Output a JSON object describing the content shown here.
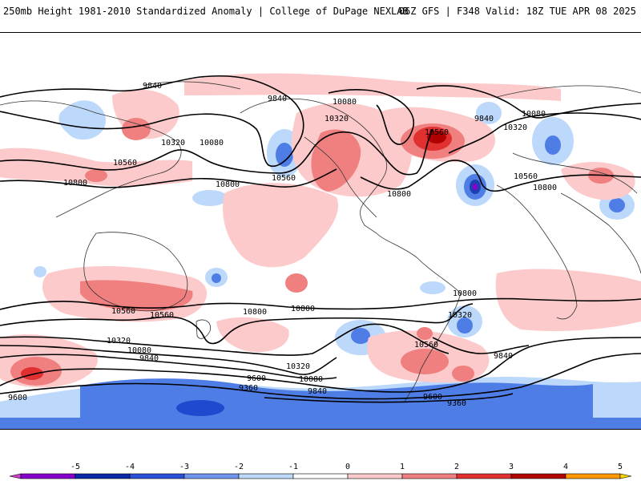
{
  "header": {
    "title_left": "250mb Height 1981-2010 Standardized Anomaly | College of DuPage NEXLAB",
    "title_right": "06Z GFS | F348 Valid: 18Z TUE APR 08 2025"
  },
  "map": {
    "region": "global",
    "contour_labels": [
      {
        "text": "9840"
      },
      {
        "text": "9840"
      },
      {
        "text": "10080"
      },
      {
        "text": "9840"
      },
      {
        "text": "10080"
      },
      {
        "text": "10320"
      },
      {
        "text": "10560"
      },
      {
        "text": "10320"
      },
      {
        "text": "10320"
      },
      {
        "text": "10080"
      },
      {
        "text": "10560"
      },
      {
        "text": "10800"
      },
      {
        "text": "10560"
      },
      {
        "text": "10800"
      },
      {
        "text": "10800"
      },
      {
        "text": "10560"
      },
      {
        "text": "10800"
      },
      {
        "text": "10800"
      },
      {
        "text": "10800"
      },
      {
        "text": "10560"
      },
      {
        "text": "10560"
      },
      {
        "text": "10800"
      },
      {
        "text": "10320"
      },
      {
        "text": "10320"
      },
      {
        "text": "10560"
      },
      {
        "text": "10320"
      },
      {
        "text": "10080"
      },
      {
        "text": "10080"
      },
      {
        "text": "9840"
      },
      {
        "text": "9840"
      },
      {
        "text": "9600"
      },
      {
        "text": "9360"
      },
      {
        "text": "9840"
      },
      {
        "text": "9600"
      },
      {
        "text": "9360"
      },
      {
        "text": "9600"
      }
    ]
  },
  "colorbar": {
    "ticks": [
      "-5",
      "-4",
      "-3",
      "-2",
      "-1",
      "0",
      "1",
      "2",
      "3",
      "4",
      "5"
    ],
    "colors": [
      "#cc40cc",
      "#8800cc",
      "#0c2aa8",
      "#2a50d8",
      "#6f95ee",
      "#bcd8fa",
      "#ffffff",
      "#fccaca",
      "#f08080",
      "#e03030",
      "#b00000",
      "#ff9900",
      "#f7d500"
    ]
  }
}
